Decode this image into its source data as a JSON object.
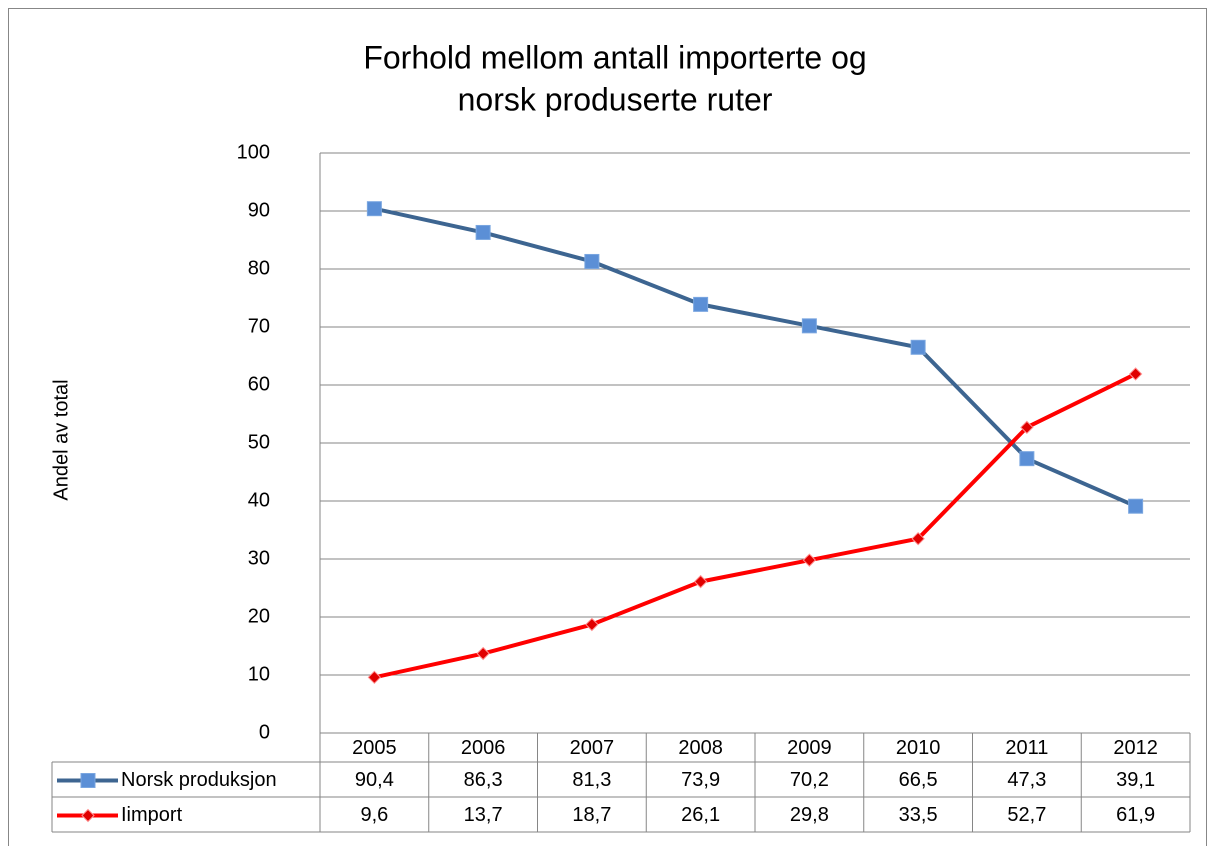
{
  "chart_data": {
    "type": "line",
    "title": [
      "Forhold mellom antall importerte og",
      "norsk produserte ruter"
    ],
    "y_label": "Andel av total",
    "categories": [
      "2005",
      "2006",
      "2007",
      "2008",
      "2009",
      "2010",
      "2011",
      "2012"
    ],
    "series": [
      {
        "name": "Norsk produksjon",
        "color": "#3d6591",
        "marker": "square",
        "marker_color": "#5b8fd6",
        "values": [
          90.4,
          86.3,
          81.3,
          73.9,
          70.2,
          66.5,
          47.3,
          39.1
        ],
        "value_labels": [
          "90,4",
          "86,3",
          "81,3",
          "73,9",
          "70,2",
          "66,5",
          "47,3",
          "39,1"
        ]
      },
      {
        "name": "Iimport",
        "color": "#ff0000",
        "marker": "diamond",
        "marker_color": "#e00000",
        "values": [
          9.6,
          13.7,
          18.7,
          26.1,
          29.8,
          33.5,
          52.7,
          61.9
        ],
        "value_labels": [
          "9,6",
          "13,7",
          "18,7",
          "26,1",
          "29,8",
          "33,5",
          "52,7",
          "61,9"
        ]
      }
    ],
    "ylim": [
      0,
      100
    ],
    "yticks": [
      0,
      10,
      20,
      30,
      40,
      50,
      60,
      70,
      80,
      90,
      100
    ],
    "grid": true
  }
}
